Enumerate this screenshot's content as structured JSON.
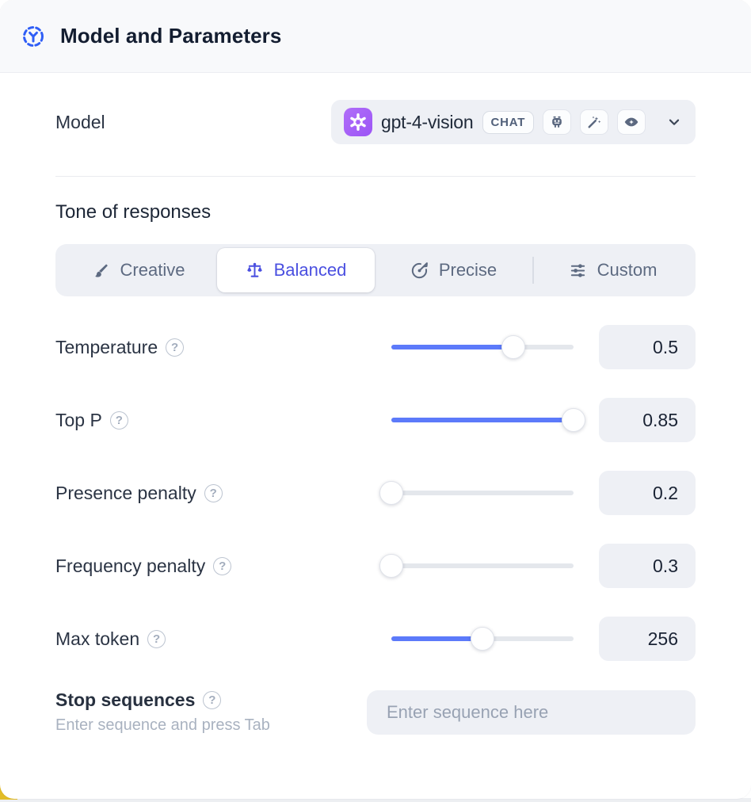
{
  "header": {
    "title": "Model and Parameters"
  },
  "model": {
    "label": "Model",
    "selected_model": "gpt-4-vision",
    "type_badge": "CHAT",
    "provider_icon": "openai-logo",
    "capability_icons": [
      "robot-icon",
      "magic-wand-icon",
      "vision-eye-icon"
    ]
  },
  "tone": {
    "heading": "Tone of responses",
    "options": [
      {
        "label": "Creative",
        "icon": "brush-icon",
        "active": false
      },
      {
        "label": "Balanced",
        "icon": "scales-icon",
        "active": true
      },
      {
        "label": "Precise",
        "icon": "target-icon",
        "active": false
      },
      {
        "label": "Custom",
        "icon": "sliders-icon",
        "active": false
      }
    ]
  },
  "parameters": [
    {
      "label": "Temperature",
      "value": "0.5",
      "slider_percent": 67
    },
    {
      "label": "Top P",
      "value": "0.85",
      "slider_percent": 100
    },
    {
      "label": "Presence penalty",
      "value": "0.2",
      "slider_percent": 0
    },
    {
      "label": "Frequency penalty",
      "value": "0.3",
      "slider_percent": 0
    },
    {
      "label": "Max token",
      "value": "256",
      "slider_percent": 50
    }
  ],
  "stop_sequences": {
    "label": "Stop sequences",
    "helper": "Enter sequence and press Tab",
    "placeholder": "Enter sequence here"
  },
  "colors": {
    "accent_blue": "#2f5ef6",
    "active_indigo": "#4a4fe0",
    "slider_blue": "#5c7afa",
    "provider_purple": "#a763f7",
    "control_bg": "#eef0f5",
    "header_bg": "#f8f9fb",
    "corner_yellow": "#e2bc27"
  }
}
